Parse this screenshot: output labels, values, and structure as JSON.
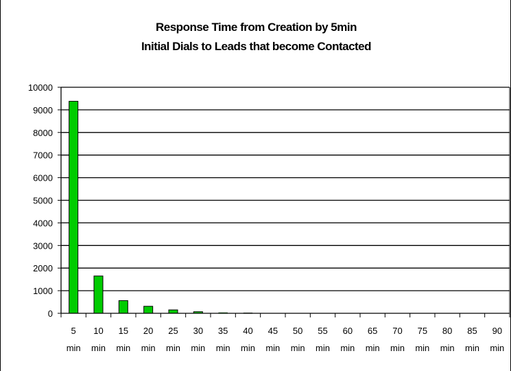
{
  "chart_data": {
    "type": "bar",
    "title": "Response Time from Creation by 5min",
    "subtitle": "Initial Dials to Leads that become Contacted",
    "xlabel": "",
    "ylabel": "",
    "ylim": [
      0,
      10000
    ],
    "yticks": [
      0,
      1000,
      2000,
      3000,
      4000,
      5000,
      6000,
      7000,
      8000,
      9000,
      10000
    ],
    "grid": true,
    "categories": [
      "5 min",
      "10 min",
      "15 min",
      "20 min",
      "25 min",
      "30 min",
      "35 min",
      "40 min",
      "45 min",
      "50 min",
      "55 min",
      "60 min",
      "65 min",
      "70 min",
      "75 min",
      "80 min",
      "85 min",
      "90 min"
    ],
    "category_numbers": [
      "5",
      "10",
      "15",
      "20",
      "25",
      "30",
      "35",
      "40",
      "45",
      "50",
      "55",
      "60",
      "65",
      "70",
      "75",
      "80",
      "85",
      "90"
    ],
    "category_unit": "min",
    "values": [
      9380,
      1650,
      560,
      310,
      150,
      70,
      30,
      20,
      8,
      5,
      3,
      2,
      2,
      1,
      1,
      1,
      1,
      1
    ],
    "bar_color": "#00cc00"
  }
}
